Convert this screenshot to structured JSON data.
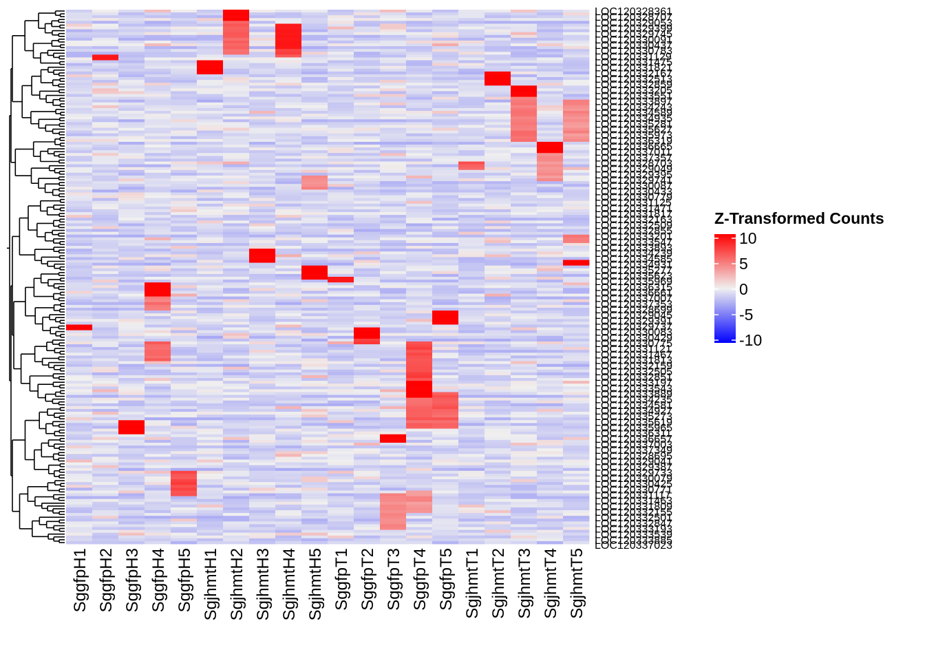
{
  "chart_data": {
    "type": "heatmap",
    "title": "",
    "xlabel": "",
    "ylabel": "",
    "columns": [
      "SggfpH1",
      "SggfpH2",
      "SggfpH3",
      "SggfpH4",
      "SggfpH5",
      "SgjhmtH1",
      "SgjhmtH2",
      "SgjhmtH3",
      "SgjhmtH4",
      "SgjhmtH5",
      "SggfpT1",
      "SggfpT2",
      "SggfpT3",
      "SggfpT4",
      "SggfpT5",
      "SgjhmtT1",
      "SgjhmtT2",
      "SgjhmtT3",
      "SgjhmtT4",
      "SgjhmtT5"
    ],
    "row_label_first": "LOC120328361",
    "row_label_last": "LOC120337023",
    "row_count": 190,
    "value_range": [
      -10,
      10
    ],
    "colorscale": [
      {
        "value": -10,
        "color": "#0000ff"
      },
      {
        "value": 0,
        "color": "#f0f0f0"
      },
      {
        "value": 10,
        "color": "#ff0000"
      }
    ],
    "blocks": [
      {
        "column": "SgjhmtH2",
        "rows": [
          0,
          3
        ],
        "value": 10
      },
      {
        "column": "SgjhmtH2",
        "rows": [
          4,
          15
        ],
        "value": 6
      },
      {
        "column": "SgjhmtH4",
        "rows": [
          5,
          13
        ],
        "value": 9
      },
      {
        "column": "SgjhmtH4",
        "rows": [
          14,
          16
        ],
        "value": 7
      },
      {
        "column": "SggfpH2",
        "rows": [
          16,
          17
        ],
        "value": 9
      },
      {
        "column": "SgjhmtH1",
        "rows": [
          18,
          22
        ],
        "value": 10
      },
      {
        "column": "SgjhmtT2",
        "rows": [
          22,
          26
        ],
        "value": 10
      },
      {
        "column": "SgjhmtT3",
        "rows": [
          27,
          30
        ],
        "value": 10
      },
      {
        "column": "SgjhmtT3",
        "rows": [
          31,
          46
        ],
        "value": 5
      },
      {
        "column": "SgjhmtT5",
        "rows": [
          32,
          46
        ],
        "value": 4
      },
      {
        "column": "SgjhmtT4",
        "rows": [
          47,
          50
        ],
        "value": 10
      },
      {
        "column": "SgjhmtT4",
        "rows": [
          51,
          60
        ],
        "value": 4
      },
      {
        "column": "SgjhmtT1",
        "rows": [
          54,
          56
        ],
        "value": 6
      },
      {
        "column": "SgjhmtH5",
        "rows": [
          59,
          63
        ],
        "value": 4
      },
      {
        "column": "SgjhmtT5",
        "rows": [
          80,
          82
        ],
        "value": 5
      },
      {
        "column": "SgjhmtH3",
        "rows": [
          85,
          89
        ],
        "value": 10
      },
      {
        "column": "SgjhmtT5",
        "rows": [
          89,
          90
        ],
        "value": 10
      },
      {
        "column": "SgjhmtH5",
        "rows": [
          91,
          95
        ],
        "value": 10
      },
      {
        "column": "SggfpT1",
        "rows": [
          95,
          96
        ],
        "value": 9
      },
      {
        "column": "SggfpH4",
        "rows": [
          97,
          101
        ],
        "value": 10
      },
      {
        "column": "SggfpH4",
        "rows": [
          102,
          106
        ],
        "value": 5
      },
      {
        "column": "SggfpT5",
        "rows": [
          107,
          111
        ],
        "value": 10
      },
      {
        "column": "SggfpH1",
        "rows": [
          112,
          113
        ],
        "value": 10
      },
      {
        "column": "SggfpT2",
        "rows": [
          113,
          116
        ],
        "value": 10
      },
      {
        "column": "SggfpT2",
        "rows": [
          117,
          118
        ],
        "value": 8
      },
      {
        "column": "SggfpH4",
        "rows": [
          118,
          124
        ],
        "value": 6
      },
      {
        "column": "SggfpT4",
        "rows": [
          118,
          131
        ],
        "value": 7
      },
      {
        "column": "SggfpT4",
        "rows": [
          132,
          137
        ],
        "value": 10
      },
      {
        "column": "SggfpT4",
        "rows": [
          138,
          148
        ],
        "value": 6
      },
      {
        "column": "SggfpT5",
        "rows": [
          136,
          148
        ],
        "value": 6
      },
      {
        "column": "SggfpH3",
        "rows": [
          146,
          150
        ],
        "value": 10
      },
      {
        "column": "SggfpT3",
        "rows": [
          151,
          153
        ],
        "value": 10
      },
      {
        "column": "SggfpH5",
        "rows": [
          164,
          172
        ],
        "value": 7
      },
      {
        "column": "SggfpT3",
        "rows": [
          172,
          184
        ],
        "value": 4
      },
      {
        "column": "SggfpT4",
        "rows": [
          171,
          178
        ],
        "value": 4
      }
    ],
    "legend": {
      "title": "Z-Transformed Counts",
      "ticks": [
        "10",
        "5",
        "0",
        "-5",
        "-10"
      ]
    }
  }
}
